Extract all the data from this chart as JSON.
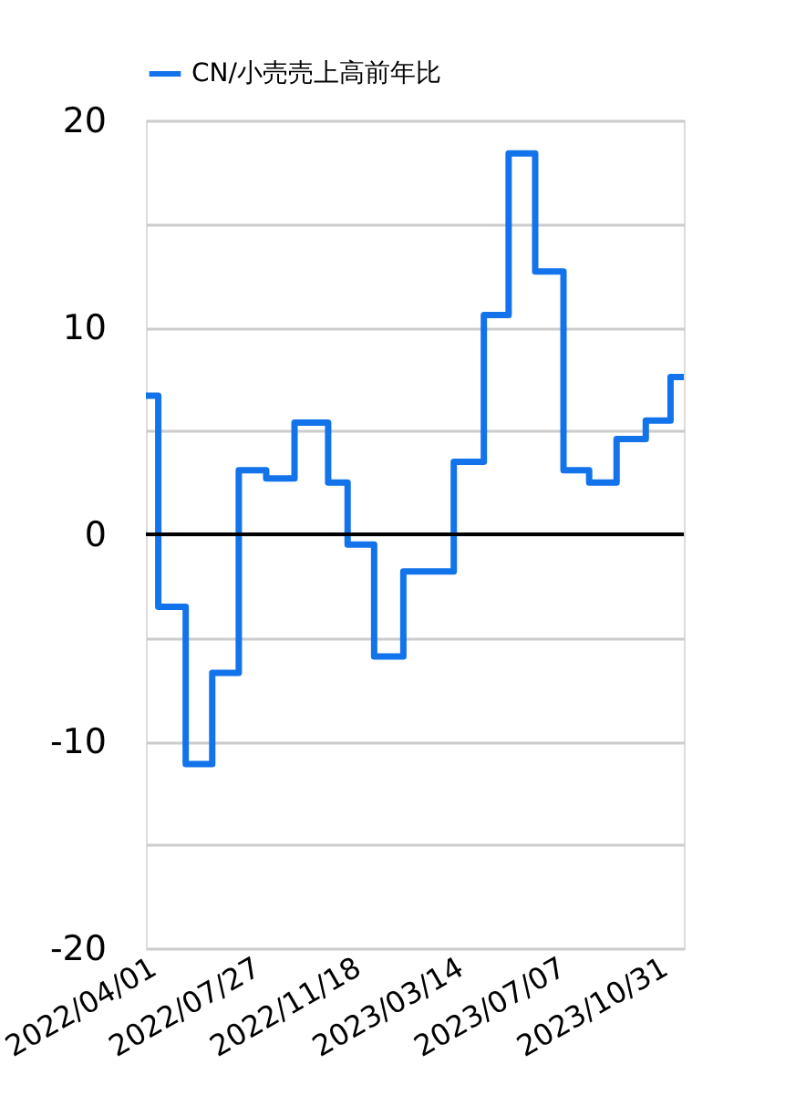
{
  "chart_data": {
    "type": "step",
    "x": [
      "2022-04-01",
      "2022-04-15",
      "2022-05-16",
      "2022-06-15",
      "2022-07-15",
      "2022-08-15",
      "2022-09-16",
      "2022-10-24",
      "2022-11-15",
      "2022-12-15",
      "2023-01-17",
      "2023-03-15",
      "2023-04-18",
      "2023-05-16",
      "2023-06-15",
      "2023-07-17",
      "2023-08-15",
      "2023-09-15",
      "2023-10-18",
      "2023-11-15",
      "2023-11-30"
    ],
    "series": [
      {
        "name": "CN/小売売上高前年比",
        "color": "#1273eb",
        "values": [
          6.7,
          -3.5,
          -11.1,
          -6.7,
          3.1,
          2.7,
          5.4,
          2.5,
          -0.5,
          -5.9,
          -1.8,
          3.5,
          10.6,
          18.4,
          12.7,
          3.1,
          2.5,
          4.6,
          5.5,
          7.6,
          7.6
        ]
      }
    ],
    "xlim": [
      "2022-04-01",
      "2023-11-30"
    ],
    "xticks": [
      {
        "value": "2022-04-01",
        "label": "2022/04/01"
      },
      {
        "value": "2022-07-27",
        "label": "2022/07/27"
      },
      {
        "value": "2022-11-18",
        "label": "2022/11/18"
      },
      {
        "value": "2023-03-14",
        "label": "2023/03/14"
      },
      {
        "value": "2023-07-07",
        "label": "2023/07/07"
      },
      {
        "value": "2023-10-31",
        "label": "2023/10/31"
      }
    ],
    "ylim": [
      -20,
      20
    ],
    "yticks": [
      -20,
      {
        "value": -15,
        "label": null
      },
      -10,
      {
        "value": -5,
        "label": null
      },
      0,
      {
        "value": 5,
        "label": null
      },
      10,
      {
        "value": 15,
        "label": null
      },
      20
    ],
    "ref_lines": [
      {
        "axis": "y",
        "value": 0,
        "color": "#000000"
      }
    ],
    "grid": "y",
    "legend": "top",
    "line_style": "solid",
    "marker": "none"
  }
}
